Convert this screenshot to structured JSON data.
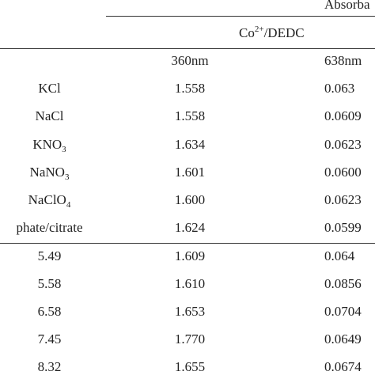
{
  "table": {
    "group_header": "Absorba",
    "subgroup_header": {
      "base": "Co",
      "sup": "2+",
      "rest": "/DEDC"
    },
    "wavelength_headers": [
      "360nm",
      "638nm"
    ],
    "rows": [
      {
        "label": {
          "base": "KCl",
          "sub": ""
        },
        "v1": "1.558",
        "v2": "0.063"
      },
      {
        "label": {
          "base": "NaCl",
          "sub": ""
        },
        "v1": "1.558",
        "v2": "0.0609"
      },
      {
        "label": {
          "base": "KNO",
          "sub": "3"
        },
        "v1": "1.634",
        "v2": "0.0623"
      },
      {
        "label": {
          "base": "NaNO",
          "sub": "3"
        },
        "v1": "1.601",
        "v2": "0.0600"
      },
      {
        "label": {
          "base": "NaClO",
          "sub": "4"
        },
        "v1": "1.600",
        "v2": "0.0623"
      },
      {
        "label": {
          "base": "phate/citrate",
          "sub": ""
        },
        "v1": "1.624",
        "v2": "0.0599"
      },
      {
        "label": {
          "base": "5.49",
          "sub": ""
        },
        "v1": "1.609",
        "v2": "0.064"
      },
      {
        "label": {
          "base": "5.58",
          "sub": ""
        },
        "v1": "1.610",
        "v2": "0.0856"
      },
      {
        "label": {
          "base": "6.58",
          "sub": ""
        },
        "v1": "1.653",
        "v2": "0.0704"
      },
      {
        "label": {
          "base": "7.45",
          "sub": ""
        },
        "v1": "1.770",
        "v2": "0.0649"
      },
      {
        "label": {
          "base": "8.32",
          "sub": ""
        },
        "v1": "1.655",
        "v2": "0.0674"
      }
    ]
  }
}
